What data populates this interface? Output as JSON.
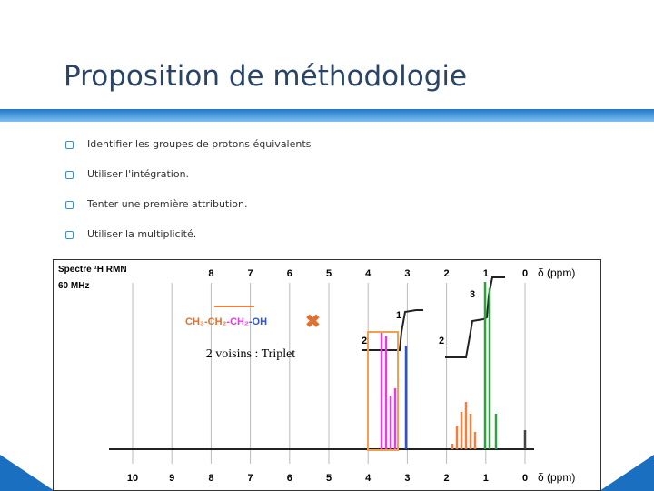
{
  "title": "Proposition de méthodologie",
  "bullets": [
    "Identifier les groupes de protons équivalents",
    "Utiliser l'intégration.",
    "Tenter une première attribution.",
    "Utiliser la multiplicité."
  ],
  "spectrum": {
    "header": "Spectre ¹H RMN",
    "frequency": "60 MHz",
    "top_axis": [
      "8",
      "7",
      "6",
      "5",
      "4",
      "3",
      "2",
      "1",
      "0"
    ],
    "bottom_axis": [
      "10",
      "9",
      "8",
      "7",
      "6",
      "5",
      "4",
      "3",
      "2",
      "1",
      "0"
    ],
    "unit": "δ (ppm)",
    "integrations": [
      "1",
      "3",
      "2",
      "2"
    ],
    "formula": [
      "CH₃-",
      "CH₂",
      "-CH₂",
      "-OH"
    ],
    "annotation": "2 voisins : Triplet"
  }
}
